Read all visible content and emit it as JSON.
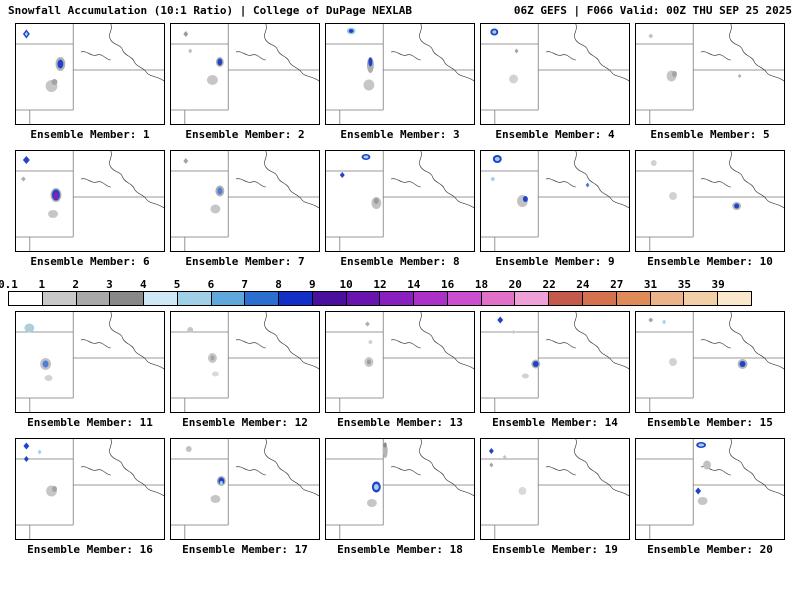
{
  "header": {
    "left": "Snowfall Accumulation (10:1 Ratio) | College of DuPage NEXLAB",
    "right": "06Z GEFS | F066 Valid: 00Z THU SEP 25 2025"
  },
  "colorbar": {
    "values": [
      "0.1",
      "1",
      "2",
      "3",
      "4",
      "5",
      "6",
      "7",
      "8",
      "9",
      "10",
      "12",
      "14",
      "16",
      "18",
      "20",
      "22",
      "24",
      "27",
      "31",
      "35",
      "39"
    ],
    "colors": [
      "#ffffff",
      "#c8c8c8",
      "#a8a8a8",
      "#888888",
      "#cfe8f3",
      "#9fd0e8",
      "#5ea8dc",
      "#2a6fd0",
      "#1230c8",
      "#4b0f9e",
      "#6a14b0",
      "#8a1fc0",
      "#ab30c8",
      "#c94fd0",
      "#e070c8",
      "#f0a0d8",
      "#c45a4a",
      "#d4714e",
      "#e08a5a",
      "#ecb28a",
      "#f3cfa8",
      "#f9e8cc"
    ]
  },
  "map_colors": {
    "state_border": "#787878",
    "river": "#404040",
    "panel_border": "#000000"
  },
  "panels": [
    {
      "member": 1,
      "label": "Ensemble Member: 1",
      "blobs": [
        [
          0.07,
          0.1,
          7,
          9,
          "#2143cc",
          "d"
        ],
        [
          0.07,
          0.1,
          3.5,
          4.5,
          "#9fd4e8",
          "d"
        ],
        [
          0.3,
          0.4,
          10,
          14,
          "#b4b4b4",
          "b"
        ],
        [
          0.3,
          0.4,
          6,
          9,
          "#2143cc",
          "b"
        ],
        [
          0.24,
          0.62,
          12,
          12,
          "#c6c6c6",
          "b"
        ],
        [
          0.26,
          0.58,
          6,
          6,
          "#a4a4a4",
          "b"
        ]
      ]
    },
    {
      "member": 2,
      "label": "Ensemble Member: 2",
      "blobs": [
        [
          0.1,
          0.1,
          5,
          6,
          "#9c9c9c",
          "d"
        ],
        [
          0.13,
          0.27,
          4,
          5,
          "#bcbcbc",
          "d"
        ],
        [
          0.33,
          0.38,
          8,
          10,
          "#b4b4b4",
          "b"
        ],
        [
          0.33,
          0.38,
          5,
          7,
          "#2143cc",
          "b"
        ],
        [
          0.28,
          0.56,
          11,
          10,
          "#c6c6c6",
          "b"
        ]
      ]
    },
    {
      "member": 3,
      "label": "Ensemble Member: 3",
      "blobs": [
        [
          0.17,
          0.07,
          9,
          7,
          "#9fd4e8",
          "b"
        ],
        [
          0.17,
          0.07,
          5,
          4,
          "#2143cc",
          "b"
        ],
        [
          0.3,
          0.41,
          7,
          16,
          "#aeaeae",
          "b"
        ],
        [
          0.3,
          0.38,
          4,
          9,
          "#2143cc",
          "b"
        ],
        [
          0.29,
          0.61,
          11,
          11,
          "#c6c6c6",
          "b"
        ]
      ]
    },
    {
      "member": 4,
      "label": "Ensemble Member: 4",
      "blobs": [
        [
          0.09,
          0.08,
          8,
          7,
          "#2143cc",
          "b"
        ],
        [
          0.09,
          0.08,
          4,
          3.5,
          "#9fd4e8",
          "b"
        ],
        [
          0.24,
          0.27,
          4,
          5,
          "#a4a4a4",
          "d"
        ],
        [
          0.22,
          0.55,
          9,
          9,
          "#d2d2d2",
          "b"
        ]
      ]
    },
    {
      "member": 5,
      "label": "Ensemble Member: 5",
      "blobs": [
        [
          0.1,
          0.12,
          5,
          5,
          "#c2c2c2",
          "d"
        ],
        [
          0.24,
          0.52,
          10,
          11,
          "#c6c6c6",
          "b"
        ],
        [
          0.26,
          0.5,
          5,
          6,
          "#a4a4a4",
          "b"
        ],
        [
          0.7,
          0.52,
          4,
          4,
          "#b4b4b4",
          "d"
        ]
      ]
    },
    {
      "member": 6,
      "label": "Ensemble Member: 6",
      "blobs": [
        [
          0.07,
          0.09,
          7,
          8,
          "#2143cc",
          "d"
        ],
        [
          0.05,
          0.28,
          5,
          5,
          "#b0b0b0",
          "d"
        ],
        [
          0.27,
          0.44,
          11,
          14,
          "#aeaeae",
          "b"
        ],
        [
          0.27,
          0.44,
          8,
          11,
          "#2143cc",
          "b"
        ],
        [
          0.27,
          0.45,
          5,
          7,
          "#8a1fb4",
          "b"
        ],
        [
          0.25,
          0.63,
          10,
          8,
          "#c6c6c6",
          "b"
        ]
      ]
    },
    {
      "member": 7,
      "label": "Ensemble Member: 7",
      "blobs": [
        [
          0.1,
          0.1,
          5,
          6,
          "#a4a4a4",
          "d"
        ],
        [
          0.33,
          0.4,
          9,
          11,
          "#b0b0b0",
          "b"
        ],
        [
          0.33,
          0.4,
          5,
          7,
          "#4f7ddd",
          "b"
        ],
        [
          0.3,
          0.58,
          10,
          9,
          "#c6c6c6",
          "b"
        ]
      ]
    },
    {
      "member": 8,
      "label": "Ensemble Member: 8",
      "blobs": [
        [
          0.27,
          0.06,
          9,
          6,
          "#2143cc",
          "b"
        ],
        [
          0.27,
          0.06,
          5,
          3,
          "#9fd4e8",
          "b"
        ],
        [
          0.11,
          0.24,
          5,
          6,
          "#2143cc",
          "d"
        ],
        [
          0.34,
          0.52,
          10,
          12,
          "#c2c2c2",
          "b"
        ],
        [
          0.34,
          0.5,
          5,
          6,
          "#9c9c9c",
          "b"
        ]
      ]
    },
    {
      "member": 9,
      "label": "Ensemble Member: 9",
      "blobs": [
        [
          0.11,
          0.08,
          9,
          8,
          "#2143cc",
          "b"
        ],
        [
          0.11,
          0.08,
          5,
          4,
          "#9fd4e8",
          "b"
        ],
        [
          0.08,
          0.28,
          5,
          5,
          "#9fd4e8",
          "d"
        ],
        [
          0.28,
          0.5,
          11,
          12,
          "#c2c2c2",
          "b"
        ],
        [
          0.3,
          0.48,
          5,
          6,
          "#2143cc",
          "b"
        ],
        [
          0.72,
          0.34,
          4,
          5,
          "#4f7ddd",
          "d"
        ]
      ]
    },
    {
      "member": 10,
      "label": "Ensemble Member: 10",
      "blobs": [
        [
          0.12,
          0.12,
          6,
          6,
          "#d2d2d2",
          "b"
        ],
        [
          0.25,
          0.45,
          8,
          8,
          "#d2d2d2",
          "b"
        ],
        [
          0.68,
          0.55,
          9,
          8,
          "#b4b4b4",
          "b"
        ],
        [
          0.68,
          0.55,
          5,
          5,
          "#2143cc",
          "b"
        ]
      ]
    },
    {
      "member": 11,
      "label": "Ensemble Member: 11",
      "blobs": [
        [
          0.09,
          0.16,
          10,
          9,
          "#9fd4e8",
          "b"
        ],
        [
          0.09,
          0.16,
          5,
          5,
          "#c6c6c6",
          "b"
        ],
        [
          0.2,
          0.52,
          11,
          12,
          "#c2c2c2",
          "b"
        ],
        [
          0.2,
          0.52,
          6,
          7,
          "#4f7ddd",
          "b"
        ],
        [
          0.22,
          0.66,
          8,
          6,
          "#d2d2d2",
          "b"
        ]
      ]
    },
    {
      "member": 12,
      "label": "Ensemble Member: 12",
      "blobs": [
        [
          0.13,
          0.18,
          6,
          6,
          "#c6c6c6",
          "b"
        ],
        [
          0.28,
          0.46,
          9,
          10,
          "#c6c6c6",
          "b"
        ],
        [
          0.28,
          0.46,
          4,
          5,
          "#a4a4a4",
          "b"
        ],
        [
          0.3,
          0.62,
          7,
          5,
          "#dadada",
          "b"
        ]
      ]
    },
    {
      "member": 13,
      "label": "Ensemble Member: 13",
      "blobs": [
        [
          0.28,
          0.12,
          5,
          5,
          "#b0b0b0",
          "d"
        ],
        [
          0.3,
          0.3,
          4,
          4,
          "#d2d2d2",
          "b"
        ],
        [
          0.29,
          0.5,
          9,
          10,
          "#c6c6c6",
          "b"
        ],
        [
          0.29,
          0.5,
          4,
          5,
          "#9c9c9c",
          "b"
        ]
      ]
    },
    {
      "member": 14,
      "label": "Ensemble Member: 14",
      "blobs": [
        [
          0.13,
          0.08,
          6,
          7,
          "#2143cc",
          "d"
        ],
        [
          0.22,
          0.2,
          4,
          4,
          "#c6c6c6",
          "d"
        ],
        [
          0.37,
          0.52,
          9,
          9,
          "#b4b4b4",
          "b"
        ],
        [
          0.37,
          0.52,
          6,
          6,
          "#2143cc",
          "b"
        ],
        [
          0.3,
          0.64,
          7,
          5,
          "#d2d2d2",
          "b"
        ]
      ]
    },
    {
      "member": 15,
      "label": "Ensemble Member: 15",
      "blobs": [
        [
          0.1,
          0.08,
          5,
          5,
          "#a4a4a4",
          "d"
        ],
        [
          0.19,
          0.1,
          4,
          5,
          "#9fd4e8",
          "d"
        ],
        [
          0.25,
          0.5,
          8,
          8,
          "#d2d2d2",
          "b"
        ],
        [
          0.72,
          0.52,
          10,
          10,
          "#b4b4b4",
          "b"
        ],
        [
          0.72,
          0.52,
          6,
          6,
          "#2143cc",
          "b"
        ]
      ]
    },
    {
      "member": 16,
      "label": "Ensemble Member: 16",
      "blobs": [
        [
          0.07,
          0.07,
          6,
          7,
          "#2143cc",
          "d"
        ],
        [
          0.07,
          0.2,
          5,
          6,
          "#2143cc",
          "d"
        ],
        [
          0.16,
          0.13,
          4,
          5,
          "#9fd4e8",
          "d"
        ],
        [
          0.24,
          0.52,
          11,
          11,
          "#c6c6c6",
          "b"
        ],
        [
          0.26,
          0.5,
          5,
          6,
          "#a4a4a4",
          "b"
        ]
      ]
    },
    {
      "member": 17,
      "label": "Ensemble Member: 17",
      "blobs": [
        [
          0.12,
          0.1,
          6,
          6,
          "#c2c2c2",
          "b"
        ],
        [
          0.34,
          0.42,
          9,
          10,
          "#aeaeae",
          "b"
        ],
        [
          0.34,
          0.42,
          6,
          7,
          "#2143cc",
          "b"
        ],
        [
          0.34,
          0.44,
          3,
          4,
          "#9fd4e8",
          "b"
        ],
        [
          0.3,
          0.6,
          10,
          8,
          "#c6c6c6",
          "b"
        ]
      ]
    },
    {
      "member": 18,
      "label": "Ensemble Member: 18",
      "blobs": [
        [
          0.4,
          0.12,
          5,
          14,
          "#b4b4b4",
          "b"
        ],
        [
          0.4,
          0.06,
          3,
          5,
          "#8a8a8a",
          "b"
        ],
        [
          0.34,
          0.48,
          9,
          11,
          "#2143cc",
          "b"
        ],
        [
          0.34,
          0.48,
          5,
          6,
          "#9fd4e8",
          "b"
        ],
        [
          0.31,
          0.64,
          10,
          8,
          "#c6c6c6",
          "b"
        ]
      ]
    },
    {
      "member": 19,
      "label": "Ensemble Member: 19",
      "blobs": [
        [
          0.07,
          0.12,
          5,
          6,
          "#2143cc",
          "d"
        ],
        [
          0.07,
          0.26,
          4,
          5,
          "#a4a4a4",
          "d"
        ],
        [
          0.16,
          0.18,
          4,
          4,
          "#c6c6c6",
          "d"
        ],
        [
          0.28,
          0.52,
          8,
          8,
          "#dadada",
          "b"
        ]
      ]
    },
    {
      "member": 20,
      "label": "Ensemble Member: 20",
      "blobs": [
        [
          0.44,
          0.06,
          10,
          6,
          "#2143cc",
          "b"
        ],
        [
          0.44,
          0.06,
          6,
          3,
          "#9fd4e8",
          "b"
        ],
        [
          0.48,
          0.26,
          8,
          9,
          "#c2c2c2",
          "b"
        ],
        [
          0.42,
          0.52,
          6,
          7,
          "#2143cc",
          "d"
        ],
        [
          0.45,
          0.62,
          10,
          8,
          "#c6c6c6",
          "b"
        ]
      ]
    }
  ]
}
